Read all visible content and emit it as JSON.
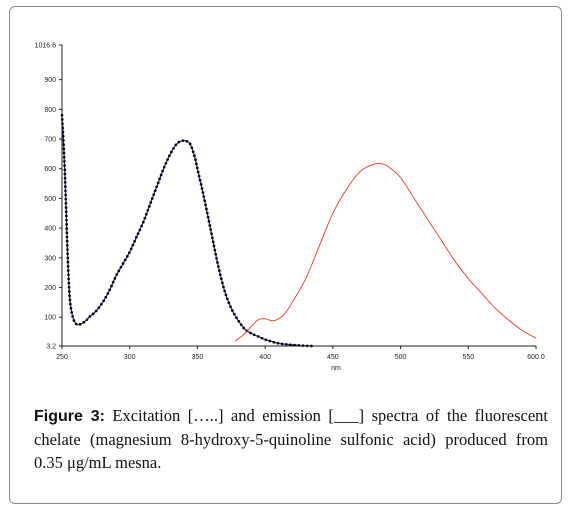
{
  "caption": {
    "label": "Figure 3:",
    "text": "Excitation […..] and emission [___] spectra of the fluorescent chelate (magnesium 8-hydroxy-5-quinoline sulfonic acid) produced from 0.35 μg/mL mesna."
  },
  "chart_data": {
    "type": "line",
    "title": "",
    "xlabel": "nm",
    "ylabel": "",
    "xlim": [
      250,
      600
    ],
    "ylim": [
      3.2,
      1016.6
    ],
    "x_ticks": [
      250,
      300,
      350,
      400,
      450,
      500,
      550,
      600
    ],
    "x_tick_labels": [
      "250",
      "300",
      "350",
      "400",
      "450",
      "500",
      "550",
      "600.0"
    ],
    "y_ticks": [
      3.2,
      100,
      200,
      300,
      400,
      500,
      600,
      700,
      800,
      900,
      1016.6
    ],
    "y_tick_labels": [
      "3.2",
      "100",
      "200",
      "300",
      "400",
      "500",
      "600",
      "700",
      "800",
      "900",
      "1016.6"
    ],
    "grid": false,
    "series": [
      {
        "color": "#1a2a8a",
        "marker_color": "#000000",
        "style": "dotted-with-markers",
        "x": [
          250,
          251,
          252,
          253,
          254,
          255,
          256,
          258,
          260,
          262,
          265,
          268,
          270,
          275,
          280,
          285,
          290,
          295,
          300,
          305,
          310,
          315,
          320,
          325,
          330,
          335,
          340,
          343,
          345,
          348,
          350,
          355,
          360,
          365,
          370,
          375,
          380,
          385,
          390,
          395,
          400,
          405,
          410,
          420,
          430,
          435
        ],
        "y": [
          780,
          700,
          600,
          470,
          330,
          220,
          150,
          100,
          80,
          75,
          80,
          90,
          100,
          120,
          150,
          190,
          240,
          280,
          320,
          370,
          420,
          480,
          540,
          600,
          650,
          685,
          695,
          690,
          680,
          640,
          600,
          500,
          390,
          280,
          190,
          130,
          90,
          60,
          45,
          35,
          25,
          18,
          12,
          7,
          4,
          3.2
        ]
      },
      {
        "color": "#e83a2a",
        "style": "solid",
        "x": [
          378,
          385,
          390,
          395,
          400,
          405,
          410,
          415,
          420,
          430,
          440,
          450,
          460,
          470,
          480,
          485,
          490,
          500,
          510,
          520,
          530,
          540,
          550,
          560,
          570,
          580,
          590,
          600
        ],
        "y": [
          20,
          45,
          70,
          92,
          95,
          88,
          95,
          115,
          150,
          230,
          340,
          450,
          530,
          590,
          615,
          617,
          610,
          570,
          500,
          430,
          360,
          290,
          230,
          180,
          130,
          90,
          55,
          30
        ]
      }
    ]
  }
}
